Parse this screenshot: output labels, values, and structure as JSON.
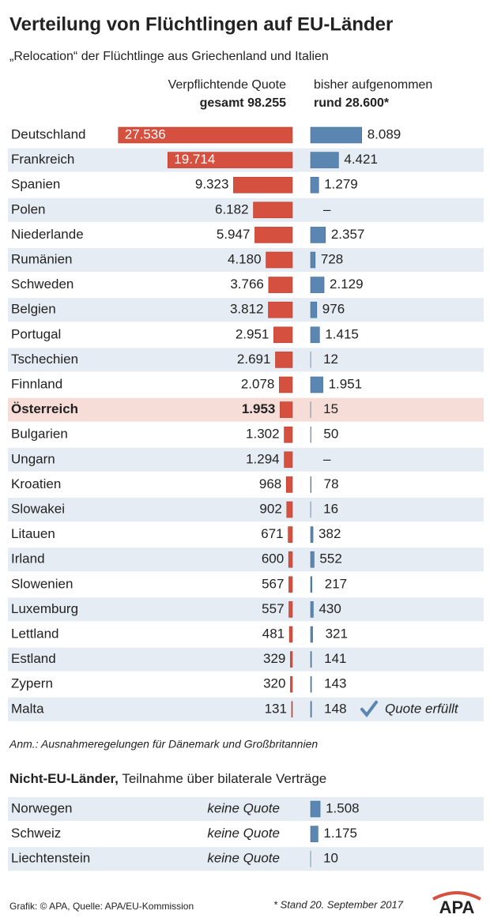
{
  "chart_data": {
    "type": "butterfly-bar",
    "title": "Verteilung von Flüchtlingen auf EU-Länder",
    "subtitle": "„Relocation“ der Flüchtlinge aus Griechenland und Italien",
    "categories": [
      "Deutschland",
      "Frankreich",
      "Spanien",
      "Polen",
      "Niederlande",
      "Rumänien",
      "Schweden",
      "Belgien",
      "Portugal",
      "Tschechien",
      "Finnland",
      "Österreich",
      "Bulgarien",
      "Ungarn",
      "Kroatien",
      "Slowakei",
      "Litauen",
      "Irland",
      "Slowenien",
      "Luxemburg",
      "Lettland",
      "Estland",
      "Zypern",
      "Malta"
    ],
    "series": [
      {
        "name": "Verpflichtende Quote",
        "total_label": "gesamt 98.255",
        "color": "#d5503e",
        "values": [
          27536,
          19714,
          9323,
          6182,
          5947,
          4180,
          3766,
          3812,
          2951,
          2691,
          2078,
          1953,
          1302,
          1294,
          968,
          902,
          671,
          600,
          567,
          557,
          481,
          329,
          320,
          131
        ],
        "value_labels": [
          "27.536",
          "19.714",
          "9.323",
          "6.182",
          "5.947",
          "4.180",
          "3.766",
          "3.812",
          "2.951",
          "2.691",
          "2.078",
          "1.953",
          "1.302",
          "1.294",
          "968",
          "902",
          "671",
          "600",
          "567",
          "557",
          "481",
          "329",
          "320",
          "131"
        ]
      },
      {
        "name": "bisher aufgenommen",
        "total_label": "rund 28.600*",
        "color": "#5a86b1",
        "values": [
          8089,
          4421,
          1279,
          null,
          2357,
          728,
          2129,
          976,
          1415,
          12,
          1951,
          15,
          50,
          null,
          78,
          16,
          382,
          552,
          217,
          430,
          321,
          141,
          143,
          148
        ],
        "value_labels": [
          "8.089",
          "4.421",
          "1.279",
          "–",
          "2.357",
          "728",
          "2.129",
          "976",
          "1.415",
          "12",
          "1.951",
          "15",
          "50",
          "–",
          "78",
          "16",
          "382",
          "552",
          "217",
          "430",
          "321",
          "141",
          "143",
          "148"
        ]
      }
    ],
    "xlim": [
      0,
      28000
    ],
    "highlight": "Österreich",
    "annotations": [
      {
        "category": "Malta",
        "text": "Quote erfüllt"
      }
    ],
    "note": "Anm.: Ausnahmeregelungen für Dänemark und Großbritannien"
  },
  "non_eu": {
    "title": "Nicht-EU-Länder,",
    "subtitle": "Teilnahme über bilaterale Verträge",
    "categories": [
      "Norwegen",
      "Schweiz",
      "Liechtenstein"
    ],
    "quota_labels": [
      "keine Quote",
      "keine Quote",
      "keine Quote"
    ],
    "values": [
      1508,
      1175,
      10
    ],
    "value_labels": [
      "1.508",
      "1.175",
      "10"
    ]
  },
  "footer": {
    "source": "Grafik: © APA, Quelle: APA/EU-Kommission",
    "stand": "* Stand 20. September 2017",
    "logo": "APA"
  }
}
